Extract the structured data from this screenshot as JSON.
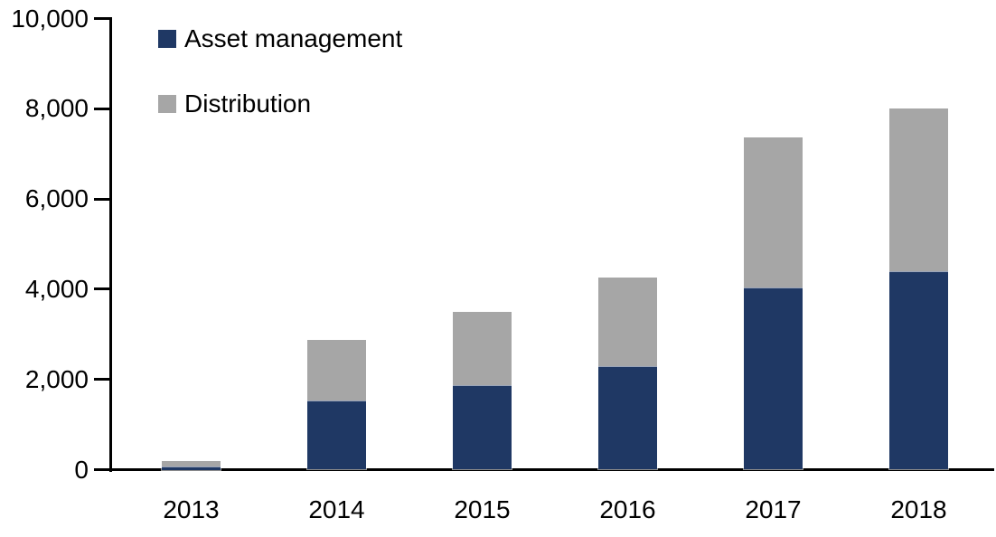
{
  "chart_data": {
    "type": "bar",
    "stacked": true,
    "title": "",
    "xlabel": "",
    "ylabel": "",
    "categories": [
      "2013",
      "2014",
      "2015",
      "2016",
      "2017",
      "2018"
    ],
    "series": [
      {
        "name": "Asset management",
        "color": "#1F3864",
        "values": [
          80,
          1540,
          1880,
          2300,
          4040,
          4400
        ]
      },
      {
        "name": "Distribution",
        "color": "#A6A6A6",
        "values": [
          120,
          1330,
          1620,
          1950,
          3330,
          3600
        ]
      }
    ],
    "ylim": [
      0,
      10000
    ],
    "ytick_step": 2000,
    "ytick_labels": [
      "0",
      "2,000",
      "4,000",
      "6,000",
      "8,000",
      "10,000"
    ],
    "grid": false,
    "legend_position": "top-left",
    "axis_color": "#000000",
    "text_color": "#000000",
    "background": "#FFFFFF"
  }
}
